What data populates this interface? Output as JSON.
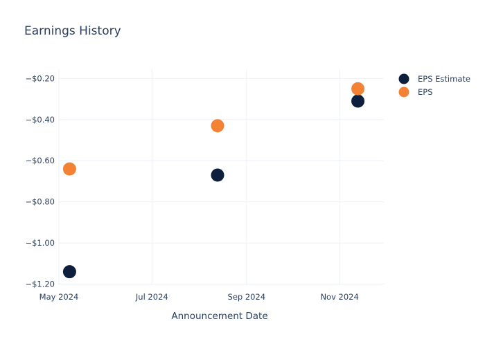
{
  "chart_data": {
    "type": "scatter",
    "title": "Earnings History",
    "xlabel": "Announcement Date",
    "ylabel": "",
    "x_ticks": [
      {
        "date": "2024-05-01",
        "label": "May 2024"
      },
      {
        "date": "2024-07-01",
        "label": "Jul 2024"
      },
      {
        "date": "2024-09-01",
        "label": "Sep 2024"
      },
      {
        "date": "2024-11-01",
        "label": "Nov 2024"
      }
    ],
    "y_ticks": [
      {
        "value": -0.2,
        "label": "−$0.20"
      },
      {
        "value": -0.4,
        "label": "−$0.40"
      },
      {
        "value": -0.6,
        "label": "−$0.60"
      },
      {
        "value": -0.8,
        "label": "−$0.80"
      },
      {
        "value": -1.0,
        "label": "−$1.00"
      },
      {
        "value": -1.2,
        "label": "−$1.20"
      }
    ],
    "xlim": [
      "2024-05-01",
      "2024-11-30"
    ],
    "ylim": [
      -1.205,
      -0.155
    ],
    "grid": true,
    "legend_position": "top-right",
    "series": [
      {
        "name": "EPS Estimate",
        "color": "#0d1f3d",
        "points": [
          {
            "x": "2024-05-08",
            "y": -1.14
          },
          {
            "x": "2024-08-13",
            "y": -0.67
          },
          {
            "x": "2024-11-13",
            "y": -0.31
          }
        ]
      },
      {
        "name": "EPS",
        "color": "#f38235",
        "points": [
          {
            "x": "2024-05-08",
            "y": -0.64
          },
          {
            "x": "2024-08-13",
            "y": -0.43
          },
          {
            "x": "2024-11-13",
            "y": -0.25
          }
        ]
      }
    ]
  }
}
